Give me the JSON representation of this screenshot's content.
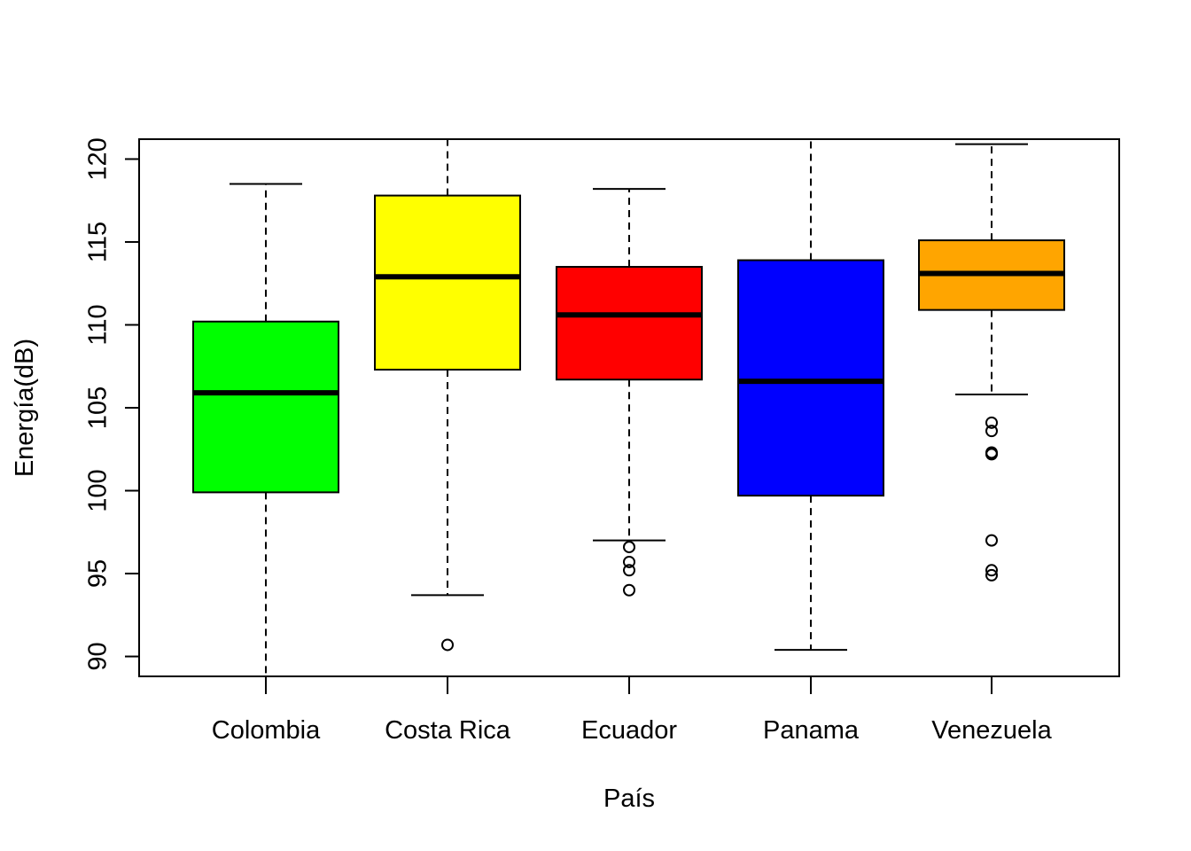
{
  "chart_data": {
    "type": "boxplot",
    "title": "",
    "xlabel": "País",
    "ylabel": "Energía(dB)",
    "ylim": [
      88.8,
      121.2
    ],
    "yticks": [
      90,
      95,
      100,
      105,
      110,
      115,
      120
    ],
    "ytick_labels": [
      "90",
      "95",
      "100",
      "105",
      "110",
      "115",
      "120"
    ],
    "grid": false,
    "legend": "none",
    "categories": [
      "Colombia",
      "Costa Rica",
      "Ecuador",
      "Panama",
      "Venezuela"
    ],
    "boxes": [
      {
        "category": "Colombia",
        "color": "#00ff00",
        "whisker_low": 88.8,
        "q1": 99.9,
        "median": 105.9,
        "q3": 110.2,
        "whisker_high": 118.5,
        "outliers": [],
        "cap_low": false,
        "cap_high": true
      },
      {
        "category": "Costa Rica",
        "color": "#ffff00",
        "whisker_low": 93.7,
        "q1": 107.3,
        "median": 112.9,
        "q3": 117.8,
        "whisker_high": 121.2,
        "outliers": [
          90.7
        ],
        "cap_low": true,
        "cap_high": false
      },
      {
        "category": "Ecuador",
        "color": "#ff0000",
        "whisker_low": 97.0,
        "q1": 106.7,
        "median": 110.6,
        "q3": 113.5,
        "whisker_high": 118.2,
        "outliers": [
          96.6,
          95.7,
          95.2,
          94.0
        ],
        "cap_low": true,
        "cap_high": true
      },
      {
        "category": "Panama",
        "color": "#0000ff",
        "whisker_low": 90.4,
        "q1": 99.7,
        "median": 106.6,
        "q3": 113.9,
        "whisker_high": 121.2,
        "outliers": [],
        "cap_low": true,
        "cap_high": false
      },
      {
        "category": "Venezuela",
        "color": "#ffa500",
        "whisker_low": 105.8,
        "q1": 110.9,
        "median": 113.1,
        "q3": 115.1,
        "whisker_high": 120.9,
        "outliers": [
          104.1,
          103.6,
          102.3,
          102.2,
          97.0,
          95.2,
          94.9
        ],
        "cap_low": true,
        "cap_high": true
      }
    ]
  }
}
